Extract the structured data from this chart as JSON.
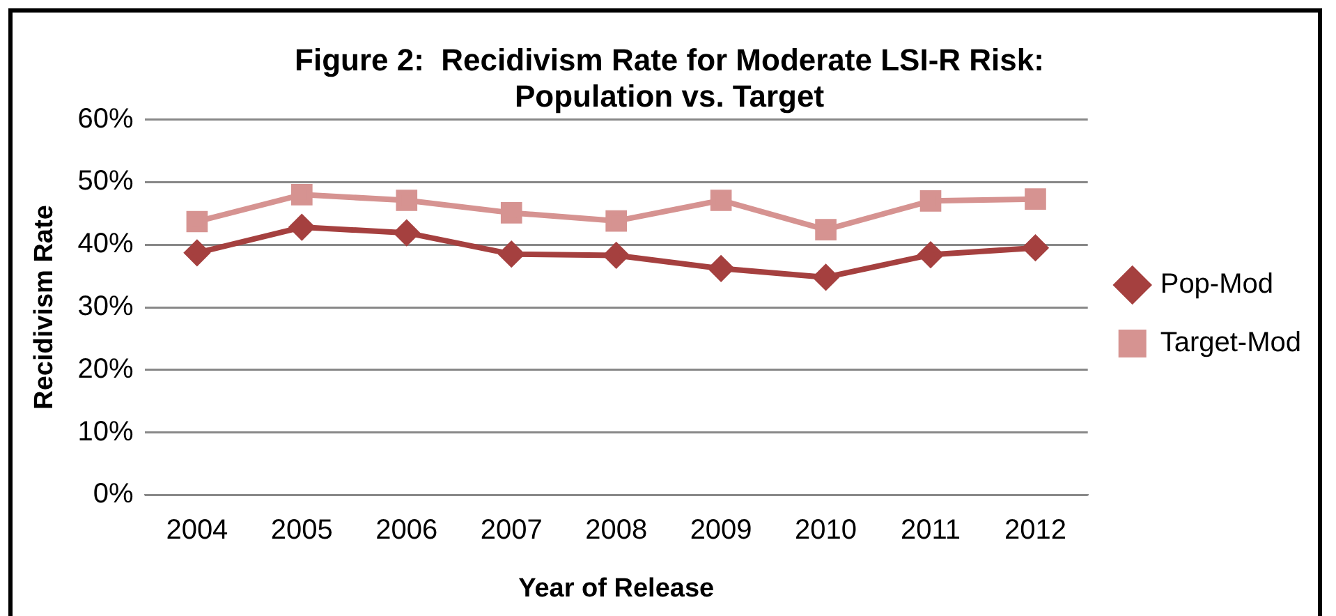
{
  "chart_data": {
    "type": "line",
    "title": "Figure 2:  Recidivism Rate for Moderate LSI-R Risk: Population vs. Target",
    "xlabel": "Year of Release",
    "ylabel": "Recidivism Rate",
    "categories": [
      "2004",
      "2005",
      "2006",
      "2007",
      "2008",
      "2009",
      "2010",
      "2011",
      "2012"
    ],
    "series": [
      {
        "name": "Pop-Mod",
        "color": "#a5403f",
        "marker": "diamond",
        "values": [
          38.7,
          42.8,
          41.9,
          38.5,
          38.3,
          36.2,
          34.8,
          38.4,
          39.5
        ]
      },
      {
        "name": "Target-Mod",
        "color": "#d69391",
        "marker": "square",
        "values": [
          43.7,
          48.0,
          47.1,
          45.1,
          43.8,
          47.1,
          42.4,
          47.0,
          47.3
        ]
      }
    ],
    "ylim": [
      0,
      60
    ],
    "yticks": [
      {
        "value": 0,
        "label": "0%"
      },
      {
        "value": 10,
        "label": "10%"
      },
      {
        "value": 20,
        "label": "20%"
      },
      {
        "value": 30,
        "label": "30%"
      },
      {
        "value": 40,
        "label": "40%"
      },
      {
        "value": 50,
        "label": "50%"
      },
      {
        "value": 60,
        "label": "60%"
      }
    ],
    "grid": "y",
    "legend": "right",
    "line_style": "solid"
  }
}
